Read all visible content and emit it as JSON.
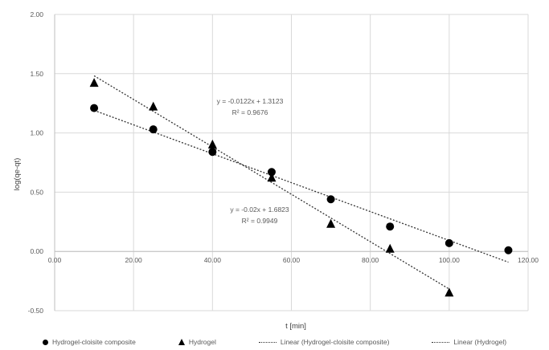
{
  "chart_data": {
    "type": "scatter",
    "title": "",
    "xlabel": "t [min]",
    "ylabel": "log(qe-qt)",
    "xlim": [
      0,
      120
    ],
    "ylim": [
      -0.5,
      2.0
    ],
    "x_ticks": [
      "0.00",
      "20.00",
      "40.00",
      "60.00",
      "80.00",
      "100.00",
      "120.00"
    ],
    "y_ticks": [
      "-0.50",
      "0.00",
      "0.50",
      "1.00",
      "1.50",
      "2.00"
    ],
    "grid": true,
    "legend_position": "bottom",
    "series": [
      {
        "name": "Hydrogel-cloisite composite",
        "marker": "circle",
        "color": "#000000",
        "x": [
          10,
          25,
          40,
          55,
          70,
          85,
          100,
          115
        ],
        "y": [
          1.21,
          1.03,
          0.84,
          0.67,
          0.44,
          0.21,
          0.07,
          0.01
        ]
      },
      {
        "name": "Hydrogel",
        "marker": "triangle",
        "color": "#000000",
        "x": [
          10,
          25,
          40,
          55,
          70,
          85,
          100
        ],
        "y": [
          1.42,
          1.22,
          0.9,
          0.62,
          0.23,
          0.02,
          -0.35
        ]
      }
    ],
    "trendlines": [
      {
        "name": "Linear (Hydrogel-cloisite composite)",
        "slope": -0.0122,
        "intercept": 1.3123,
        "x_range": [
          10,
          115
        ],
        "equation": "y = -0.0122x + 1.3123",
        "r2": "R² = 0.9676"
      },
      {
        "name": "Linear (Hydrogel)",
        "slope": -0.02,
        "intercept": 1.6823,
        "x_range": [
          10,
          100
        ],
        "equation": "y = -0.02x + 1.6823",
        "r2": "R² = 0.9949"
      }
    ]
  }
}
